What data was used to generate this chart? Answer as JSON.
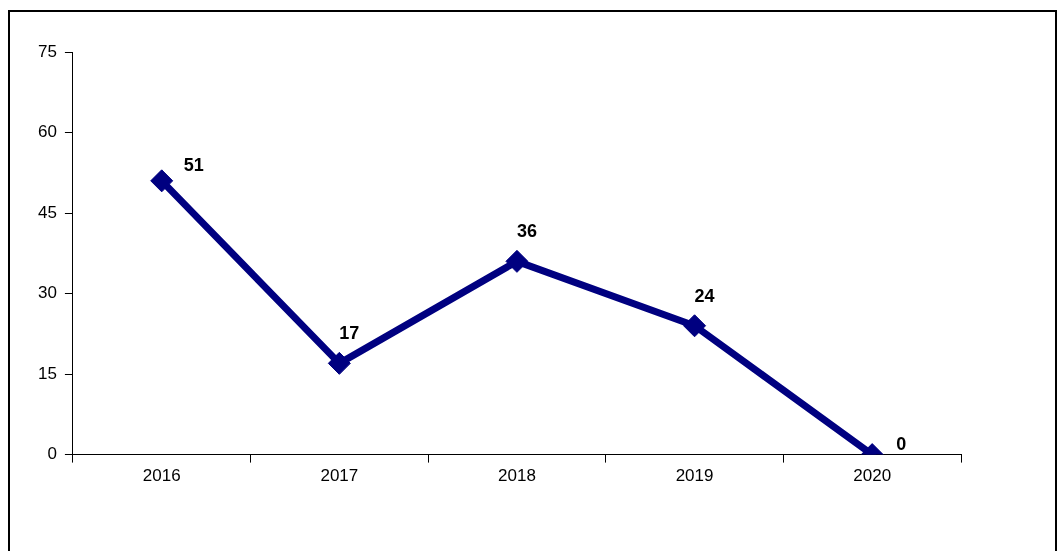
{
  "chart_data": {
    "type": "line",
    "categories": [
      "2016",
      "2017",
      "2018",
      "2019",
      "2020"
    ],
    "series": [
      {
        "color": "#000080",
        "values": [
          51,
          17,
          36,
          24,
          0
        ]
      }
    ],
    "ylim": [
      0,
      75
    ],
    "yticks": [
      0,
      15,
      30,
      45,
      60,
      75
    ],
    "grid": false,
    "legend": false,
    "marker": "diamond",
    "line_style": "solid",
    "data_labels": true
  }
}
